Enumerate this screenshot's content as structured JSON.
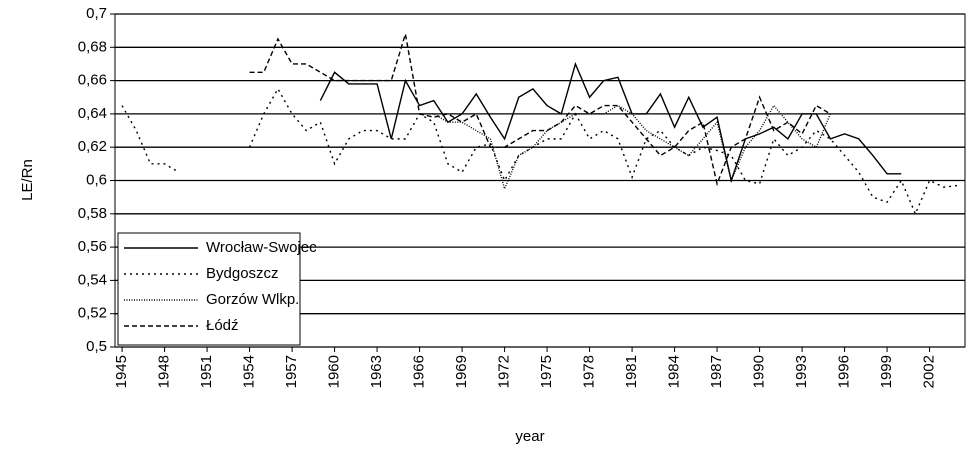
{
  "chart_data": {
    "type": "line",
    "x": [
      1945,
      1946,
      1947,
      1948,
      1949,
      1950,
      1951,
      1952,
      1953,
      1954,
      1955,
      1956,
      1957,
      1958,
      1959,
      1960,
      1961,
      1962,
      1963,
      1964,
      1965,
      1966,
      1967,
      1968,
      1969,
      1970,
      1971,
      1972,
      1973,
      1974,
      1975,
      1976,
      1977,
      1978,
      1979,
      1980,
      1981,
      1982,
      1983,
      1984,
      1985,
      1986,
      1987,
      1988,
      1989,
      1990,
      1991,
      1992,
      1993,
      1994,
      1995,
      1996,
      1997,
      1998,
      1999,
      2000,
      2001,
      2002,
      2003,
      2004
    ],
    "xlim": [
      1944.5,
      2004.5
    ],
    "xticks": [
      1945,
      1948,
      1951,
      1954,
      1957,
      1960,
      1963,
      1966,
      1969,
      1972,
      1975,
      1978,
      1981,
      1984,
      1987,
      1990,
      1993,
      1996,
      1999,
      2002
    ],
    "ylim": [
      0.5,
      0.7
    ],
    "yticks": [
      {
        "value": 0.5,
        "label": "0,5"
      },
      {
        "value": 0.52,
        "label": "0,52"
      },
      {
        "value": 0.54,
        "label": "0,54"
      },
      {
        "value": 0.56,
        "label": "0,56"
      },
      {
        "value": 0.58,
        "label": "0,58"
      },
      {
        "value": 0.6,
        "label": "0,6"
      },
      {
        "value": 0.62,
        "label": "0,62"
      },
      {
        "value": 0.64,
        "label": "0,64"
      },
      {
        "value": 0.66,
        "label": "0,66"
      },
      {
        "value": 0.68,
        "label": "0,68"
      },
      {
        "value": 0.7,
        "label": "0,7"
      }
    ],
    "x_label": "year",
    "y_label": "LE/Rn",
    "grid": true,
    "legend": "lower left",
    "series": [
      {
        "name": "Wrocław-Swojec",
        "color": "#000000",
        "dash": "none",
        "values": [
          null,
          null,
          null,
          null,
          null,
          null,
          null,
          null,
          null,
          null,
          null,
          null,
          null,
          null,
          0.648,
          0.665,
          0.658,
          0.658,
          0.658,
          0.625,
          0.66,
          0.645,
          0.648,
          0.635,
          0.64,
          0.652,
          0.638,
          0.625,
          0.65,
          0.655,
          0.645,
          0.64,
          0.67,
          0.65,
          0.66,
          0.662,
          0.64,
          0.64,
          0.652,
          0.632,
          0.65,
          0.632,
          0.638,
          0.6,
          0.625,
          0.628,
          0.632,
          0.625,
          0.64,
          0.64,
          0.625,
          0.628,
          0.625,
          0.615,
          0.604,
          0.604,
          null,
          null,
          null,
          null
        ]
      },
      {
        "name": "Bydgoszcz",
        "color": "#000000",
        "dash": "2 4",
        "values": [
          0.645,
          0.63,
          0.61,
          0.61,
          0.605,
          null,
          null,
          null,
          null,
          0.62,
          0.64,
          0.655,
          0.64,
          0.63,
          0.635,
          0.61,
          0.625,
          0.63,
          0.63,
          0.625,
          0.625,
          0.64,
          0.635,
          0.61,
          0.605,
          0.62,
          0.622,
          0.6,
          0.615,
          0.62,
          0.625,
          0.625,
          0.64,
          0.625,
          0.63,
          0.625,
          0.602,
          0.625,
          0.63,
          0.62,
          0.615,
          0.62,
          0.618,
          0.615,
          0.6,
          0.598,
          0.625,
          0.615,
          0.62,
          0.63,
          0.625,
          0.615,
          0.605,
          0.59,
          0.587,
          0.6,
          0.58,
          0.6,
          0.596,
          0.597
        ]
      },
      {
        "name": "Gorzów Wlkp.",
        "color": "#000000",
        "dash": "1 1.5",
        "values": [
          null,
          null,
          null,
          null,
          null,
          null,
          null,
          null,
          null,
          null,
          null,
          null,
          null,
          null,
          null,
          null,
          null,
          null,
          null,
          null,
          null,
          0.64,
          0.64,
          0.635,
          0.635,
          0.63,
          0.625,
          0.595,
          0.615,
          0.62,
          0.63,
          0.635,
          0.64,
          0.64,
          0.64,
          0.645,
          0.64,
          0.63,
          0.625,
          0.62,
          0.615,
          0.625,
          0.635,
          0.6,
          0.62,
          0.63,
          0.645,
          0.635,
          0.625,
          0.62,
          0.64,
          null,
          null,
          null,
          null,
          null,
          null,
          null,
          null,
          null
        ]
      },
      {
        "name": "Łódź",
        "color": "#000000",
        "dash": "5 3",
        "values": [
          null,
          null,
          null,
          null,
          null,
          null,
          null,
          null,
          null,
          0.665,
          0.665,
          0.685,
          0.67,
          0.67,
          0.665,
          0.66,
          0.66,
          0.66,
          0.66,
          0.66,
          0.688,
          0.64,
          0.638,
          0.64,
          0.635,
          0.64,
          0.62,
          0.62,
          0.625,
          0.63,
          0.63,
          0.635,
          0.645,
          0.64,
          0.645,
          0.645,
          0.635,
          0.625,
          0.615,
          0.62,
          0.63,
          0.635,
          0.598,
          0.62,
          0.625,
          0.65,
          0.63,
          0.635,
          0.628,
          0.645,
          0.64,
          null,
          null,
          null,
          null,
          null,
          null,
          null,
          null,
          null
        ]
      }
    ]
  }
}
